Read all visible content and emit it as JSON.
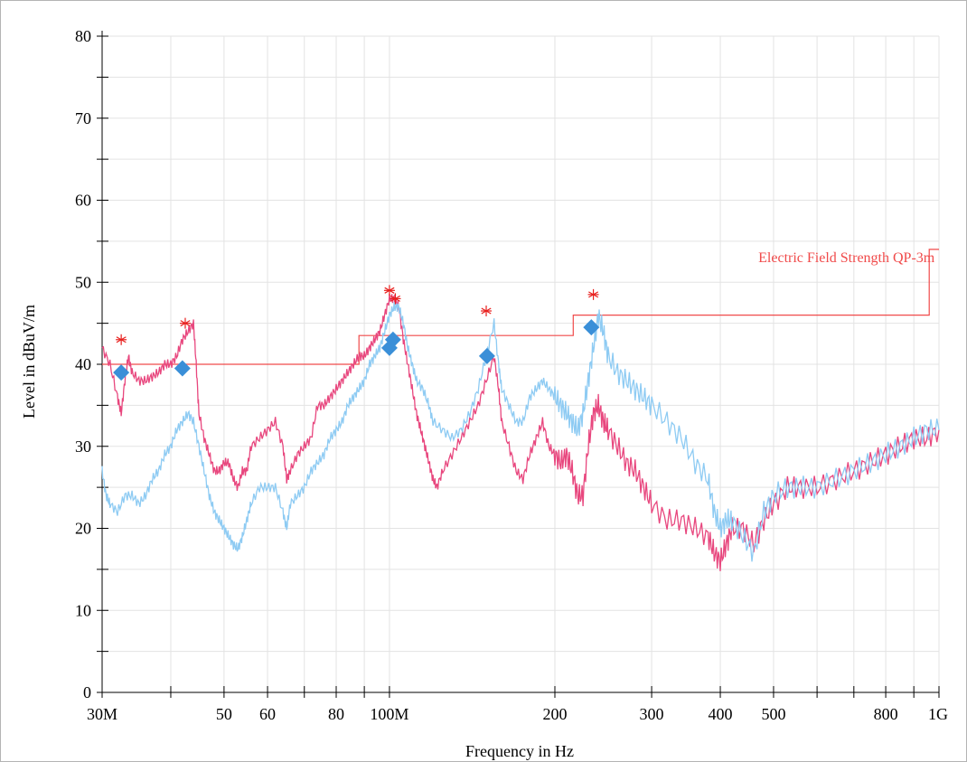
{
  "chart_data": {
    "type": "line",
    "xlabel": "Frequency in Hz",
    "ylabel": "Level in dBuV/m",
    "x_scale": "log",
    "xlim": [
      30000000,
      1000000000
    ],
    "ylim": [
      0,
      80
    ],
    "grid": true,
    "y_ticks": [
      0,
      10,
      20,
      30,
      40,
      50,
      60,
      70,
      80
    ],
    "x_ticks": [
      {
        "value": 30000000,
        "label": "30M"
      },
      {
        "value": 50000000,
        "label": "50"
      },
      {
        "value": 60000000,
        "label": "60"
      },
      {
        "value": 80000000,
        "label": "80"
      },
      {
        "value": 100000000,
        "label": "100M"
      },
      {
        "value": 200000000,
        "label": "200"
      },
      {
        "value": 300000000,
        "label": "300"
      },
      {
        "value": 400000000,
        "label": "400"
      },
      {
        "value": 500000000,
        "label": "500"
      },
      {
        "value": 800000000,
        "label": "800"
      },
      {
        "value": 1000000000,
        "label": "1G"
      }
    ],
    "limit_line": {
      "label": "Electric Field Strength QP-3m",
      "color": "#f04a4a",
      "points": [
        [
          30000000,
          40
        ],
        [
          88000000,
          40
        ],
        [
          88000000,
          43.5
        ],
        [
          216000000,
          43.5
        ],
        [
          216000000,
          46
        ],
        [
          960000000,
          46
        ],
        [
          960000000,
          54
        ],
        [
          1000000000,
          54
        ]
      ]
    },
    "series": [
      {
        "color": "#e8477e",
        "points": [
          [
            30000000,
            42
          ],
          [
            31000000,
            40
          ],
          [
            32000000,
            36
          ],
          [
            32500000,
            34
          ],
          [
            33000000,
            38
          ],
          [
            33500000,
            41
          ],
          [
            34000000,
            39
          ],
          [
            35000000,
            38
          ],
          [
            36000000,
            38
          ],
          [
            37000000,
            38.5
          ],
          [
            38000000,
            39
          ],
          [
            39000000,
            40
          ],
          [
            40000000,
            40
          ],
          [
            41000000,
            41
          ],
          [
            42000000,
            43
          ],
          [
            43000000,
            44
          ],
          [
            44000000,
            45
          ],
          [
            44500000,
            40
          ],
          [
            45000000,
            34
          ],
          [
            46000000,
            31
          ],
          [
            47000000,
            29
          ],
          [
            48000000,
            27
          ],
          [
            49000000,
            27
          ],
          [
            50000000,
            28
          ],
          [
            51000000,
            28
          ],
          [
            52000000,
            26
          ],
          [
            53000000,
            25
          ],
          [
            54000000,
            27
          ],
          [
            55000000,
            27
          ],
          [
            56000000,
            30
          ],
          [
            58000000,
            31
          ],
          [
            60000000,
            32
          ],
          [
            62000000,
            33
          ],
          [
            64000000,
            30
          ],
          [
            65000000,
            26
          ],
          [
            66000000,
            27
          ],
          [
            68000000,
            29
          ],
          [
            70000000,
            30
          ],
          [
            72000000,
            31
          ],
          [
            74000000,
            35
          ],
          [
            76000000,
            35
          ],
          [
            78000000,
            36
          ],
          [
            80000000,
            37
          ],
          [
            82000000,
            38
          ],
          [
            84000000,
            39
          ],
          [
            86000000,
            40
          ],
          [
            88000000,
            41
          ],
          [
            90000000,
            41
          ],
          [
            92000000,
            42
          ],
          [
            94000000,
            43
          ],
          [
            96000000,
            44
          ],
          [
            98000000,
            46
          ],
          [
            100000000,
            48
          ],
          [
            102000000,
            48
          ],
          [
            104000000,
            47
          ],
          [
            106000000,
            43
          ],
          [
            108000000,
            40
          ],
          [
            110000000,
            37
          ],
          [
            112000000,
            34
          ],
          [
            114000000,
            32
          ],
          [
            116000000,
            30
          ],
          [
            118000000,
            28
          ],
          [
            120000000,
            26
          ],
          [
            122000000,
            25
          ],
          [
            125000000,
            27
          ],
          [
            130000000,
            29
          ],
          [
            135000000,
            31
          ],
          [
            140000000,
            33
          ],
          [
            145000000,
            35
          ],
          [
            150000000,
            38
          ],
          [
            155000000,
            41
          ],
          [
            158000000,
            37
          ],
          [
            160000000,
            33
          ],
          [
            165000000,
            30
          ],
          [
            170000000,
            27
          ],
          [
            175000000,
            26
          ],
          [
            180000000,
            29
          ],
          [
            185000000,
            31
          ],
          [
            190000000,
            33
          ],
          [
            195000000,
            30
          ],
          [
            200000000,
            29
          ],
          [
            205000000,
            28
          ],
          [
            210000000,
            29
          ],
          [
            215000000,
            27
          ],
          [
            220000000,
            24
          ],
          [
            225000000,
            24
          ],
          [
            230000000,
            30
          ],
          [
            235000000,
            34
          ],
          [
            240000000,
            35
          ],
          [
            245000000,
            33
          ],
          [
            250000000,
            32
          ],
          [
            260000000,
            30
          ],
          [
            270000000,
            28
          ],
          [
            280000000,
            27
          ],
          [
            290000000,
            25
          ],
          [
            300000000,
            23
          ],
          [
            320000000,
            21
          ],
          [
            340000000,
            21
          ],
          [
            360000000,
            20
          ],
          [
            380000000,
            19
          ],
          [
            390000000,
            17
          ],
          [
            400000000,
            16
          ],
          [
            410000000,
            18
          ],
          [
            420000000,
            20
          ],
          [
            440000000,
            20
          ],
          [
            460000000,
            18
          ],
          [
            480000000,
            21
          ],
          [
            500000000,
            23
          ],
          [
            530000000,
            25
          ],
          [
            560000000,
            25
          ],
          [
            600000000,
            25
          ],
          [
            650000000,
            26
          ],
          [
            700000000,
            27
          ],
          [
            750000000,
            28
          ],
          [
            800000000,
            29
          ],
          [
            850000000,
            30
          ],
          [
            900000000,
            31
          ],
          [
            950000000,
            31
          ],
          [
            1000000000,
            32
          ]
        ]
      },
      {
        "color": "#8ecbf3",
        "points": [
          [
            30000000,
            27
          ],
          [
            30500000,
            24
          ],
          [
            31000000,
            23
          ],
          [
            32000000,
            22
          ],
          [
            33000000,
            24
          ],
          [
            34000000,
            24
          ],
          [
            35000000,
            23
          ],
          [
            36000000,
            24
          ],
          [
            37000000,
            26
          ],
          [
            38000000,
            27
          ],
          [
            39000000,
            29
          ],
          [
            40000000,
            30
          ],
          [
            41000000,
            32
          ],
          [
            42000000,
            33
          ],
          [
            43000000,
            34
          ],
          [
            44000000,
            33
          ],
          [
            45000000,
            30
          ],
          [
            46000000,
            27
          ],
          [
            47000000,
            24
          ],
          [
            48000000,
            22
          ],
          [
            49000000,
            21
          ],
          [
            50000000,
            20
          ],
          [
            51000000,
            19
          ],
          [
            52000000,
            18
          ],
          [
            53000000,
            17.5
          ],
          [
            54000000,
            19
          ],
          [
            55000000,
            21
          ],
          [
            56000000,
            23
          ],
          [
            58000000,
            25
          ],
          [
            60000000,
            25
          ],
          [
            62000000,
            25
          ],
          [
            64000000,
            22
          ],
          [
            65000000,
            20
          ],
          [
            66000000,
            23
          ],
          [
            68000000,
            24
          ],
          [
            70000000,
            25
          ],
          [
            72000000,
            27
          ],
          [
            74000000,
            28
          ],
          [
            76000000,
            29
          ],
          [
            78000000,
            31
          ],
          [
            80000000,
            32
          ],
          [
            82000000,
            33
          ],
          [
            84000000,
            35
          ],
          [
            86000000,
            36
          ],
          [
            88000000,
            37
          ],
          [
            90000000,
            38
          ],
          [
            92000000,
            40
          ],
          [
            94000000,
            41
          ],
          [
            96000000,
            42
          ],
          [
            98000000,
            44
          ],
          [
            100000000,
            46
          ],
          [
            102000000,
            47
          ],
          [
            104000000,
            47
          ],
          [
            106000000,
            45
          ],
          [
            108000000,
            42
          ],
          [
            110000000,
            40
          ],
          [
            112000000,
            38
          ],
          [
            115000000,
            37
          ],
          [
            118000000,
            35
          ],
          [
            120000000,
            33
          ],
          [
            125000000,
            32
          ],
          [
            130000000,
            31
          ],
          [
            135000000,
            32
          ],
          [
            140000000,
            34
          ],
          [
            145000000,
            37
          ],
          [
            150000000,
            41
          ],
          [
            155000000,
            45
          ],
          [
            158000000,
            40
          ],
          [
            160000000,
            37
          ],
          [
            165000000,
            35
          ],
          [
            170000000,
            33
          ],
          [
            175000000,
            33
          ],
          [
            180000000,
            36
          ],
          [
            185000000,
            37
          ],
          [
            190000000,
            38
          ],
          [
            195000000,
            37
          ],
          [
            200000000,
            36
          ],
          [
            205000000,
            35
          ],
          [
            210000000,
            34
          ],
          [
            215000000,
            33
          ],
          [
            220000000,
            32
          ],
          [
            225000000,
            34
          ],
          [
            230000000,
            38
          ],
          [
            235000000,
            42
          ],
          [
            240000000,
            46
          ],
          [
            245000000,
            44
          ],
          [
            250000000,
            41
          ],
          [
            260000000,
            39
          ],
          [
            270000000,
            38
          ],
          [
            280000000,
            37
          ],
          [
            290000000,
            36
          ],
          [
            300000000,
            35
          ],
          [
            320000000,
            33
          ],
          [
            340000000,
            31
          ],
          [
            360000000,
            28
          ],
          [
            380000000,
            26
          ],
          [
            390000000,
            22
          ],
          [
            400000000,
            20
          ],
          [
            410000000,
            21
          ],
          [
            420000000,
            21
          ],
          [
            440000000,
            19
          ],
          [
            460000000,
            17
          ],
          [
            480000000,
            22
          ],
          [
            500000000,
            24
          ],
          [
            530000000,
            25
          ],
          [
            560000000,
            25
          ],
          [
            600000000,
            25
          ],
          [
            650000000,
            26
          ],
          [
            700000000,
            27
          ],
          [
            750000000,
            28
          ],
          [
            800000000,
            29
          ],
          [
            850000000,
            30
          ],
          [
            900000000,
            31
          ],
          [
            950000000,
            32
          ],
          [
            1000000000,
            32
          ]
        ]
      }
    ],
    "peak_markers": [
      {
        "x": 32500000,
        "y": 43
      },
      {
        "x": 42500000,
        "y": 45
      },
      {
        "x": 100000000,
        "y": 49
      },
      {
        "x": 102500000,
        "y": 48
      },
      {
        "x": 150000000,
        "y": 46.5
      },
      {
        "x": 235000000,
        "y": 48.5
      }
    ],
    "qp_markers": [
      {
        "x": 32500000,
        "y": 39
      },
      {
        "x": 42000000,
        "y": 39.5
      },
      {
        "x": 100000000,
        "y": 42
      },
      {
        "x": 101500000,
        "y": 43
      },
      {
        "x": 150500000,
        "y": 41
      },
      {
        "x": 233000000,
        "y": 44.5
      }
    ]
  }
}
